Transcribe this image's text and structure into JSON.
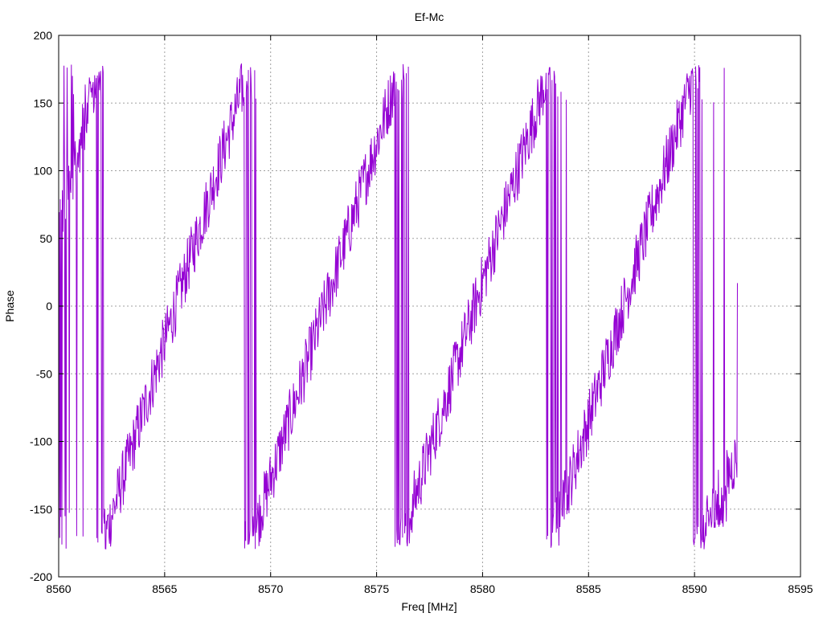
{
  "chart_data": {
    "type": "line",
    "title": "Ef-Mc",
    "xlabel": "Freq [MHz]",
    "ylabel": "Phase",
    "xlim": [
      8560,
      8595
    ],
    "ylim": [
      -200,
      200
    ],
    "xticks": [
      8560,
      8565,
      8570,
      8575,
      8580,
      8585,
      8590,
      8595
    ],
    "yticks": [
      -200,
      -150,
      -100,
      -50,
      0,
      50,
      100,
      150,
      200
    ],
    "grid": true,
    "legend": "none",
    "series": [
      {
        "color": "#9400d3",
        "x_start": 8560.0,
        "x_step": 0.05,
        "x_end": 8592.0,
        "trend_segments": [
          {
            "x0": 8560.0,
            "x1": 8562.0,
            "y0": 60,
            "y1": 180
          },
          {
            "x0": 8562.0,
            "x1": 8569.0,
            "y0": -180,
            "y1": 178
          },
          {
            "x0": 8569.0,
            "x1": 8576.1,
            "y0": -178,
            "y1": 176
          },
          {
            "x0": 8576.1,
            "x1": 8583.2,
            "y0": -176,
            "y1": 177
          },
          {
            "x0": 8583.2,
            "x1": 8590.1,
            "y0": -177,
            "y1": 178
          },
          {
            "x0": 8590.1,
            "x1": 8592.0,
            "y0": -180,
            "y1": -110
          }
        ],
        "noise_amplitude": 22,
        "wrap_regions": [
          [
            8560.0,
            8562.3
          ],
          [
            8568.6,
            8569.3
          ],
          [
            8575.9,
            8576.7
          ],
          [
            8583.0,
            8584.0
          ],
          [
            8589.8,
            8591.5
          ]
        ]
      }
    ]
  }
}
